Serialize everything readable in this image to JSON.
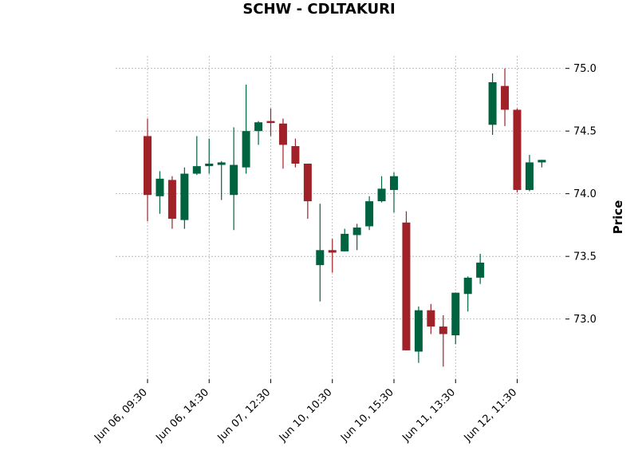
{
  "chart_data": {
    "type": "candlestick",
    "title": "SCHW - CDLTAKURI",
    "ylabel": "Price",
    "xlabel": "",
    "ylim": [
      72.52,
      75.1
    ],
    "y_ticks": [
      73.0,
      73.5,
      74.0,
      74.5,
      75.0
    ],
    "y_tick_labels": [
      "73.0",
      "73.5",
      "74.0",
      "74.5",
      "75.0"
    ],
    "x_tick_labels": [
      {
        "index": 0,
        "label": "Jun 06, 09:30"
      },
      {
        "index": 5,
        "label": "Jun 06, 14:30"
      },
      {
        "index": 10,
        "label": "Jun 07, 12:30"
      },
      {
        "index": 15,
        "label": "Jun 10, 10:30"
      },
      {
        "index": 20,
        "label": "Jun 10, 15:30"
      },
      {
        "index": 25,
        "label": "Jun 11, 13:30"
      },
      {
        "index": 30,
        "label": "Jun 12, 11:30"
      }
    ],
    "grid": true,
    "y_axis_position": "right",
    "colors": {
      "up": "#006340",
      "down": "#a02128",
      "grid": "#b0b0b0"
    },
    "candles": [
      {
        "open": 74.46,
        "high": 74.6,
        "low": 73.78,
        "close": 73.99
      },
      {
        "open": 73.98,
        "high": 74.18,
        "low": 73.84,
        "close": 74.12
      },
      {
        "open": 74.11,
        "high": 74.14,
        "low": 73.72,
        "close": 73.8
      },
      {
        "open": 73.79,
        "high": 74.21,
        "low": 73.72,
        "close": 74.16
      },
      {
        "open": 74.16,
        "high": 74.46,
        "low": 74.15,
        "close": 74.22
      },
      {
        "open": 74.22,
        "high": 74.44,
        "low": 74.16,
        "close": 74.24
      },
      {
        "open": 74.23,
        "high": 74.26,
        "low": 73.95,
        "close": 74.25
      },
      {
        "open": 73.99,
        "high": 74.53,
        "low": 73.71,
        "close": 74.23
      },
      {
        "open": 74.21,
        "high": 74.87,
        "low": 74.16,
        "close": 74.5
      },
      {
        "open": 74.5,
        "high": 74.58,
        "low": 74.39,
        "close": 74.57
      },
      {
        "open": 74.58,
        "high": 74.68,
        "low": 74.46,
        "close": 74.57
      },
      {
        "open": 74.56,
        "high": 74.6,
        "low": 74.2,
        "close": 74.39
      },
      {
        "open": 74.38,
        "high": 74.44,
        "low": 74.21,
        "close": 74.24
      },
      {
        "open": 74.24,
        "high": 74.24,
        "low": 73.8,
        "close": 73.94
      },
      {
        "open": 73.43,
        "high": 73.92,
        "low": 73.14,
        "close": 73.55
      },
      {
        "open": 73.55,
        "high": 73.64,
        "low": 73.37,
        "close": 73.53
      },
      {
        "open": 73.54,
        "high": 73.72,
        "low": 73.54,
        "close": 73.68
      },
      {
        "open": 73.67,
        "high": 73.76,
        "low": 73.55,
        "close": 73.73
      },
      {
        "open": 73.74,
        "high": 73.98,
        "low": 73.71,
        "close": 73.94
      },
      {
        "open": 73.94,
        "high": 74.14,
        "low": 73.93,
        "close": 74.04
      },
      {
        "open": 74.03,
        "high": 74.17,
        "low": 73.85,
        "close": 74.14
      },
      {
        "open": 73.77,
        "high": 73.86,
        "low": 72.75,
        "close": 72.75
      },
      {
        "open": 72.74,
        "high": 73.1,
        "low": 72.65,
        "close": 73.07
      },
      {
        "open": 73.07,
        "high": 73.12,
        "low": 72.88,
        "close": 72.94
      },
      {
        "open": 72.94,
        "high": 73.03,
        "low": 72.62,
        "close": 72.88
      },
      {
        "open": 72.87,
        "high": 73.21,
        "low": 72.8,
        "close": 73.21
      },
      {
        "open": 73.2,
        "high": 73.34,
        "low": 73.06,
        "close": 73.33
      },
      {
        "open": 73.33,
        "high": 73.52,
        "low": 73.28,
        "close": 73.45
      },
      {
        "open": 74.55,
        "high": 74.96,
        "low": 74.47,
        "close": 74.89
      },
      {
        "open": 74.86,
        "high": 75.0,
        "low": 74.54,
        "close": 74.67
      },
      {
        "open": 74.67,
        "high": 74.68,
        "low": 74.01,
        "close": 74.03
      },
      {
        "open": 74.03,
        "high": 74.31,
        "low": 74.02,
        "close": 74.25
      },
      {
        "open": 74.25,
        "high": 74.27,
        "low": 74.21,
        "close": 74.27
      }
    ]
  }
}
